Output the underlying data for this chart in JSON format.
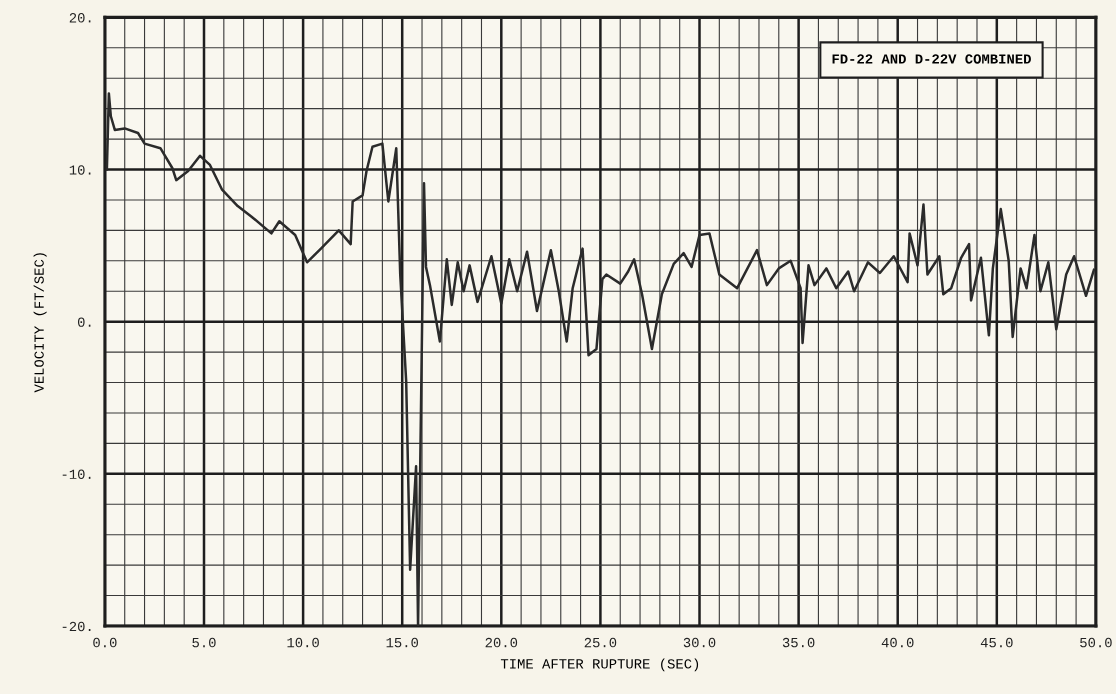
{
  "chart_data": {
    "type": "line",
    "xlabel": "TIME AFTER RUPTURE (SEC)",
    "ylabel": "VELOCITY (FT/SEC)",
    "annotations": [
      "FD-22 AND D-22V COMBINED"
    ],
    "xlim": [
      0,
      50
    ],
    "xticks": [
      {
        "value": 0,
        "label": "0.0"
      },
      {
        "value": 5,
        "label": "5.0"
      },
      {
        "value": 10,
        "label": "10.0"
      },
      {
        "value": 15,
        "label": "15.0"
      },
      {
        "value": 20,
        "label": "20.0"
      },
      {
        "value": 25,
        "label": "25.0"
      },
      {
        "value": 30,
        "label": "30.0"
      },
      {
        "value": 35,
        "label": "35.0"
      },
      {
        "value": 40,
        "label": "40.0"
      },
      {
        "value": 45,
        "label": "45.0"
      },
      {
        "value": 50,
        "label": "50.0"
      }
    ],
    "ylim": [
      -20,
      20
    ],
    "yticks": [
      {
        "value": -20,
        "label": "-20."
      },
      {
        "value": -10,
        "label": "-10."
      },
      {
        "value": 0,
        "label": "0."
      },
      {
        "value": 10,
        "label": "10."
      },
      {
        "value": 20,
        "label": "20."
      }
    ],
    "grid": true,
    "marker": "none",
    "line_style": "solid",
    "series": [
      {
        "color": "#2b2b2b",
        "x": [
          0.1,
          0.2,
          0.3,
          0.5,
          1.0,
          1.67,
          2.0,
          2.8,
          3.4,
          3.6,
          4.2,
          4.8,
          5.3,
          5.9,
          6.7,
          7.4,
          8.4,
          8.8,
          9.6,
          10.2,
          10.9,
          11.8,
          12.4,
          12.5,
          13.0,
          13.2,
          13.5,
          14.0,
          14.3,
          14.7,
          14.9,
          15.2,
          15.4,
          15.7,
          15.8,
          16.1,
          16.2,
          16.4,
          16.9,
          17.25,
          17.5,
          17.8,
          18.1,
          18.4,
          18.8,
          19.5,
          20.0,
          20.4,
          20.8,
          21.3,
          21.8,
          22.1,
          22.5,
          22.9,
          23.3,
          23.6,
          24.1,
          24.4,
          24.8,
          25.1,
          25.3,
          26.0,
          26.4,
          26.7,
          27.1,
          27.6,
          28.1,
          28.7,
          29.2,
          29.6,
          30.0,
          30.5,
          31.0,
          31.9,
          32.9,
          33.4,
          34.0,
          34.6,
          35.1,
          35.2,
          35.5,
          35.8,
          36.4,
          36.9,
          37.5,
          37.8,
          38.5,
          39.1,
          39.8,
          40.5,
          40.6,
          41.0,
          41.3,
          41.5,
          42.1,
          42.3,
          42.7,
          43.2,
          43.6,
          43.7,
          44.2,
          44.6,
          44.8,
          45.2,
          45.6,
          45.8,
          46.2,
          46.5,
          46.9,
          47.2,
          47.6,
          48.0,
          48.5,
          48.9,
          49.5,
          49.9
        ],
        "values": [
          10,
          15,
          13.5,
          12.6,
          12.7,
          12.4,
          11.7,
          11.4,
          10.1,
          9.3,
          9.9,
          10.9,
          10.3,
          8.7,
          7.6,
          6.9,
          5.8,
          6.6,
          5.7,
          3.9,
          4.8,
          6.0,
          5.1,
          7.9,
          8.3,
          9.9,
          11.5,
          11.7,
          7.9,
          11.4,
          3.1,
          -3.9,
          -16.3,
          -9.5,
          -20,
          9.1,
          3.6,
          2.4,
          -1.3,
          4.1,
          1.1,
          3.9,
          2.0,
          3.7,
          1.3,
          4.3,
          1.2,
          4.1,
          2.0,
          4.6,
          0.7,
          2.4,
          4.7,
          2.0,
          -1.3,
          2.2,
          4.8,
          -2.2,
          -1.8,
          2.8,
          3.1,
          2.5,
          3.3,
          4.1,
          1.8,
          -1.8,
          1.8,
          3.8,
          4.5,
          3.6,
          5.7,
          5.8,
          3.1,
          2.2,
          4.7,
          2.4,
          3.5,
          4.0,
          2.2,
          -1.4,
          3.7,
          2.4,
          3.5,
          2.2,
          3.3,
          2.0,
          3.9,
          3.2,
          4.3,
          2.6,
          5.8,
          3.7,
          7.7,
          3.1,
          4.3,
          1.8,
          2.2,
          4.2,
          5.1,
          1.4,
          4.2,
          -0.9,
          3.5,
          7.4,
          4.0,
          -1.0,
          3.5,
          2.2,
          5.7,
          2.0,
          3.9,
          -0.5,
          3.1,
          4.3,
          1.7,
          3.4
        ]
      }
    ]
  }
}
